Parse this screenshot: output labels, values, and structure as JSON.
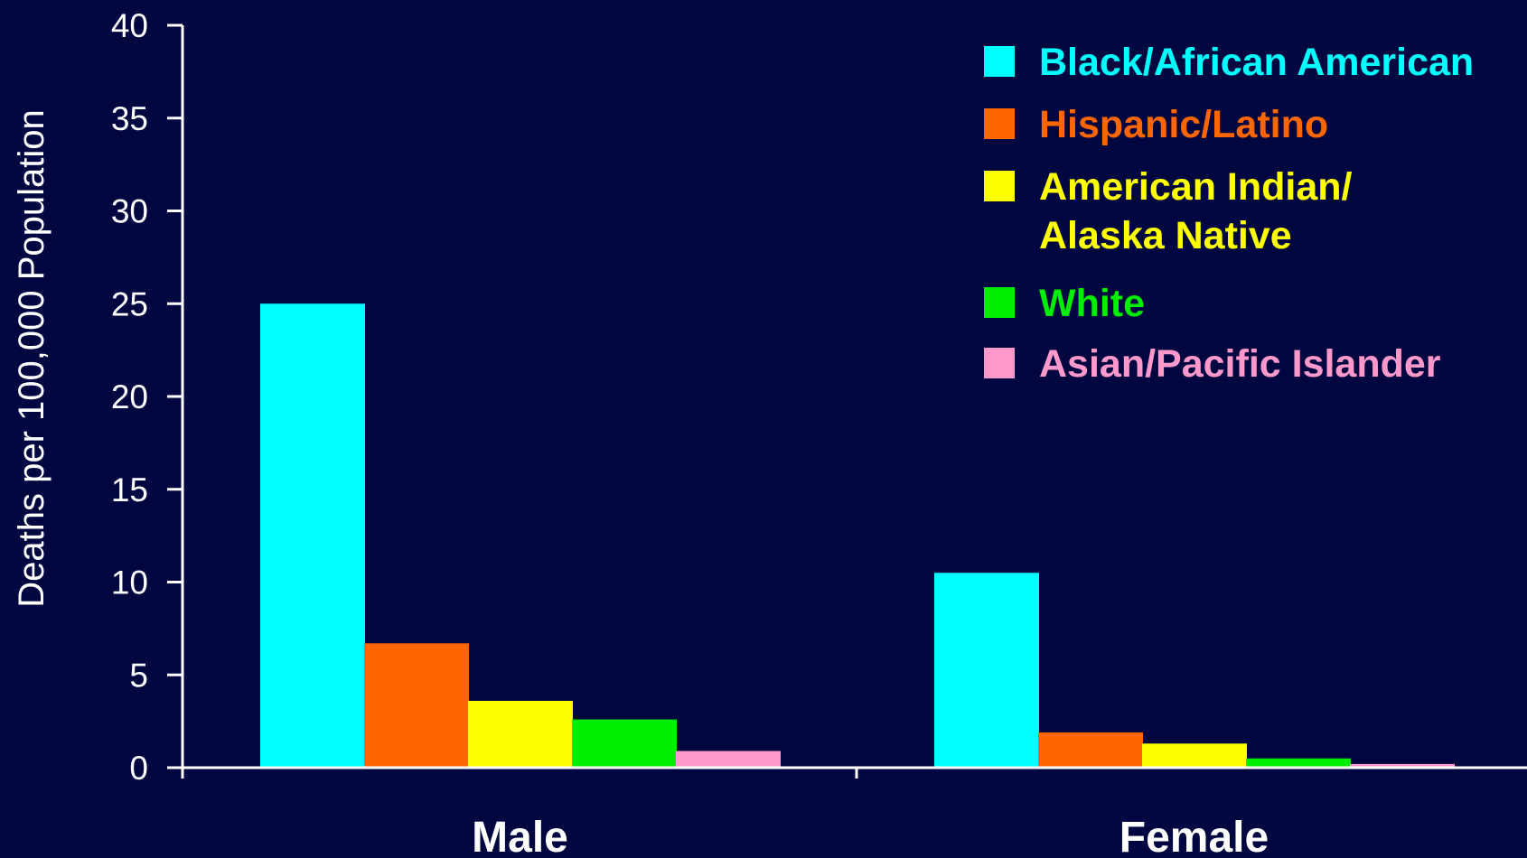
{
  "chart_data": {
    "type": "bar",
    "categories": [
      "Male",
      "Female"
    ],
    "series": [
      {
        "name": "Black/African American",
        "legend_lines": [
          "Black/African American"
        ],
        "color": "#00FFFF",
        "values": [
          25.0,
          10.5
        ]
      },
      {
        "name": "Hispanic/Latino",
        "legend_lines": [
          "Hispanic/Latino"
        ],
        "color": "#FF6600",
        "values": [
          6.7,
          1.9
        ]
      },
      {
        "name": "American Indian/ Alaska Native",
        "legend_lines": [
          "American Indian/",
          "Alaska Native"
        ],
        "color": "#FFFF00",
        "values": [
          3.6,
          1.3
        ]
      },
      {
        "name": "White",
        "legend_lines": [
          "White"
        ],
        "color": "#00EE00",
        "values": [
          2.6,
          0.5
        ]
      },
      {
        "name": "Asian/Pacific Islander",
        "legend_lines": [
          "Asian/Pacific Islander"
        ],
        "color": "#FF99CC",
        "values": [
          0.9,
          0.2
        ]
      }
    ],
    "ylabel": "Deaths per 100,000 Population",
    "xlabel": "",
    "ylim": [
      0,
      40
    ],
    "yticks": [
      0,
      5,
      10,
      15,
      20,
      25,
      30,
      35,
      40
    ],
    "legend_position": "top-right",
    "grid": false
  },
  "colors": {
    "background": "#000640",
    "axis": "#ffffff"
  }
}
